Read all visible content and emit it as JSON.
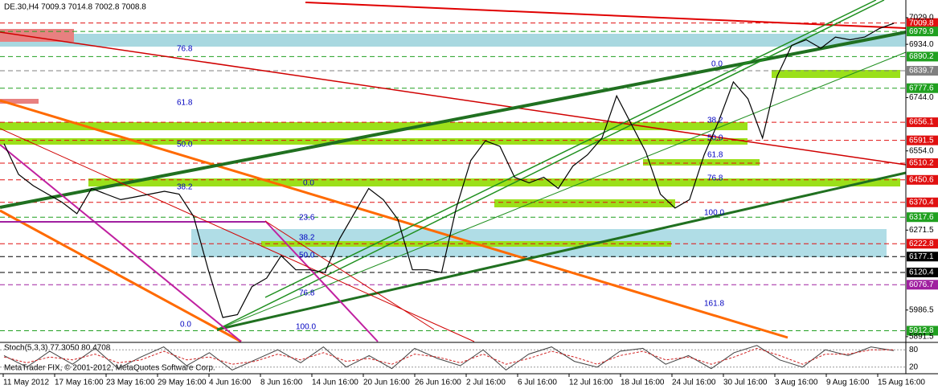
{
  "chart_data": [
    {
      "type": "line",
      "title": "DE.30,H4  7009.3 7014.8 7002.8 7008.8",
      "footer": "MetaTrader FIX, © 2001-2012, MetaQuotes Software Corp.",
      "series": [
        {
          "color": "#000000",
          "values": [
            6580,
            6470,
            6430,
            6400,
            6370,
            6330,
            6420,
            6400,
            6380,
            6390,
            6400,
            6410,
            6400,
            6320,
            6130,
            5960,
            5970,
            6070,
            6100,
            6180,
            6130,
            6130,
            6120,
            6240,
            6330,
            6420,
            6380,
            6310,
            6130,
            6130,
            6120,
            6350,
            6520,
            6590,
            6570,
            6460,
            6440,
            6460,
            6420,
            6500,
            6540,
            6600,
            6750,
            6650,
            6550,
            6400,
            6350,
            6380,
            6540,
            6660,
            6800,
            6740,
            6600,
            6820,
            6930,
            6950,
            6920,
            6960,
            6950,
            6960,
            6990,
            7009
          ]
        }
      ],
      "ylim": [
        5874,
        7092
      ],
      "yticks": [
        {
          "value": 7029,
          "label": "7029.0"
        },
        {
          "value": 6934,
          "label": "6934.0"
        },
        {
          "value": 6744,
          "label": "6744.0"
        },
        {
          "value": 6554,
          "label": "6554.0"
        },
        6271.5,
        5986.5,
        5891.5
      ],
      "levels": [
        {
          "value": 7009.8,
          "color": "#e01010"
        },
        {
          "value": 6979.9,
          "color": "#20a020"
        },
        {
          "value": 6890.2,
          "color": "#20a020"
        },
        {
          "value": 6839.7,
          "color": "#808080"
        },
        {
          "value": 6777.6,
          "color": "#20a020"
        },
        {
          "value": 6656.1,
          "color": "#e01010"
        },
        {
          "value": 6591.5,
          "color": "#e01010"
        },
        {
          "value": 6510.2,
          "color": "#e01010"
        },
        {
          "value": 6450.6,
          "color": "#e01010"
        },
        {
          "value": 6370.4,
          "color": "#e01010"
        },
        {
          "value": 6317.6,
          "color": "#20a020"
        },
        {
          "value": 6222.8,
          "color": "#e01010"
        },
        {
          "value": 6177.1,
          "color": "#000000"
        },
        {
          "value": 6120.4,
          "color": "#000000"
        },
        {
          "value": 6076.7,
          "color": "#a020a0"
        },
        {
          "value": 5912.8,
          "color": "#20a020"
        }
      ],
      "xticks": [
        "11 May 2012",
        "17 May 16:00",
        "23 May 16:00",
        "29 May 16:00",
        "4 Jun 16:00",
        "8 Jun 16:00",
        "14 Jun 16:00",
        "20 Jun 16:00",
        "26 Jun 16:00",
        "2 Jul 16:00",
        "6 Jul 16:00",
        "12 Jul 16:00",
        "18 Jul 16:00",
        "24 Jul 16:00",
        "30 Jul 16:00",
        "3 Aug 16:00",
        "9 Aug 16:00",
        "15 Aug 16:00"
      ],
      "fib_labels": [
        "76.8",
        "61.8",
        "50.0",
        "38.2",
        "0.0",
        "23.6",
        "38.2",
        "50.0",
        "76.8",
        "100.0",
        "0.0",
        "0.0",
        "38.2",
        "50.0",
        "61.8",
        "76.8",
        "100.0",
        "161.8"
      ]
    },
    {
      "type": "line",
      "title": "Stoch(5,3,3) 77.3050 80.4708",
      "series": [
        {
          "color": "#404040",
          "values": [
            60,
            20,
            75,
            30,
            85,
            15,
            55,
            90,
            25,
            70,
            10,
            45,
            80,
            35,
            90,
            20,
            60,
            15,
            85,
            50,
            25,
            80,
            10,
            65,
            90,
            40,
            20,
            75,
            85,
            30,
            60,
            15,
            70,
            95,
            45,
            20,
            80,
            60,
            90,
            77
          ]
        },
        {
          "color": "#d02020",
          "values": [
            55,
            35,
            55,
            45,
            65,
            35,
            45,
            75,
            45,
            55,
            30,
            40,
            65,
            45,
            70,
            40,
            50,
            30,
            65,
            55,
            35,
            65,
            30,
            50,
            75,
            55,
            30,
            60,
            75,
            45,
            55,
            30,
            55,
            85,
            60,
            30,
            65,
            65,
            80,
            80
          ]
        }
      ],
      "ylim": [
        0,
        100
      ],
      "yticks": [
        80,
        20
      ]
    }
  ]
}
